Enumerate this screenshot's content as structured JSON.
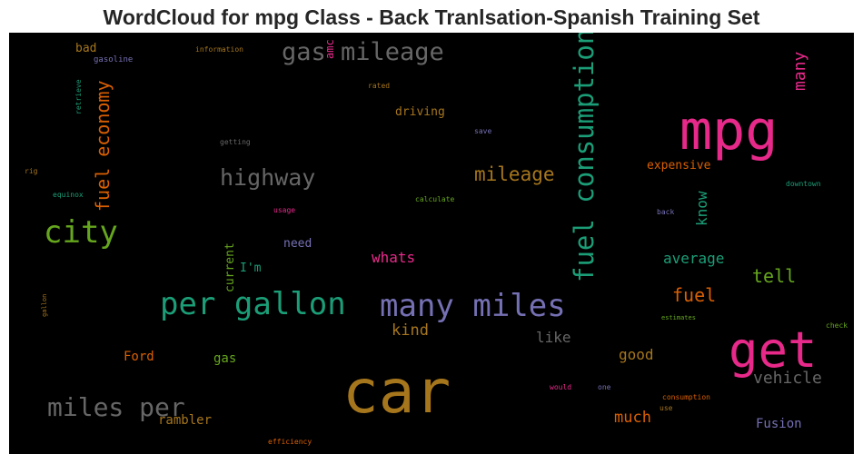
{
  "chart_data": {
    "type": "wordcloud",
    "title": "WordCloud for mpg Class - Back Tranlsation-Spanish Training Set",
    "words": [
      {
        "text": "car",
        "color": "#a6761d"
      },
      {
        "text": "mpg",
        "color": "#e7298a"
      },
      {
        "text": "get",
        "color": "#e7298a"
      },
      {
        "text": "per gallon",
        "color": "#1b9e77"
      },
      {
        "text": "many miles",
        "color": "#7570b3"
      },
      {
        "text": "fuel consumption",
        "color": "#1b9e77"
      },
      {
        "text": "miles per",
        "color": "#666666"
      },
      {
        "text": "city",
        "color": "#66a61e"
      },
      {
        "text": "gas mileage",
        "color": "#666666"
      },
      {
        "text": "highway",
        "color": "#666666"
      },
      {
        "text": "fuel economy",
        "color": "#d95f02"
      },
      {
        "text": "mileage",
        "color": "#a6761d"
      },
      {
        "text": "many",
        "color": "#e7298a"
      },
      {
        "text": "fuel",
        "color": "#d95f02"
      },
      {
        "text": "tell",
        "color": "#66a61e"
      },
      {
        "text": "vehicle",
        "color": "#666666"
      },
      {
        "text": "kind",
        "color": "#a6761d"
      },
      {
        "text": "whats",
        "color": "#e7298a"
      },
      {
        "text": "know",
        "color": "#1b9e77"
      },
      {
        "text": "average",
        "color": "#1b9e77"
      },
      {
        "text": "much",
        "color": "#d95f02"
      },
      {
        "text": "good",
        "color": "#a6761d"
      },
      {
        "text": "like",
        "color": "#666666"
      },
      {
        "text": "Ford",
        "color": "#d95f02"
      },
      {
        "text": "gas",
        "color": "#66a61e"
      },
      {
        "text": "rambler",
        "color": "#a6761d"
      },
      {
        "text": "Fusion",
        "color": "#7570b3"
      },
      {
        "text": "current",
        "color": "#66a61e"
      },
      {
        "text": "I'm",
        "color": "#1b9e77"
      },
      {
        "text": "need",
        "color": "#7570b3"
      },
      {
        "text": "driving",
        "color": "#a6761d"
      },
      {
        "text": "expensive",
        "color": "#d95f02"
      },
      {
        "text": "bad",
        "color": "#a6761d"
      },
      {
        "text": "amc",
        "color": "#e7298a"
      },
      {
        "text": "gasoline",
        "color": "#7570b3"
      },
      {
        "text": "information",
        "color": "#a6761d"
      },
      {
        "text": "retrieve",
        "color": "#1b9e77"
      },
      {
        "text": "rated",
        "color": "#a6761d"
      },
      {
        "text": "getting",
        "color": "#666666"
      },
      {
        "text": "save",
        "color": "#7570b3"
      },
      {
        "text": "rig",
        "color": "#a6761d"
      },
      {
        "text": "equinox",
        "color": "#1b9e77"
      },
      {
        "text": "calculate",
        "color": "#66a61e"
      },
      {
        "text": "usage",
        "color": "#e7298a"
      },
      {
        "text": "back",
        "color": "#7570b3"
      },
      {
        "text": "downtown",
        "color": "#1b9e77"
      },
      {
        "text": "gallon",
        "color": "#a6761d"
      },
      {
        "text": "estimates",
        "color": "#66a61e"
      },
      {
        "text": "check",
        "color": "#66a61e"
      },
      {
        "text": "would",
        "color": "#e7298a"
      },
      {
        "text": "one",
        "color": "#7570b3"
      },
      {
        "text": "use",
        "color": "#a6761d"
      },
      {
        "text": "consumption",
        "color": "#d95f02"
      },
      {
        "text": "efficiency",
        "color": "#d95f02"
      }
    ]
  }
}
